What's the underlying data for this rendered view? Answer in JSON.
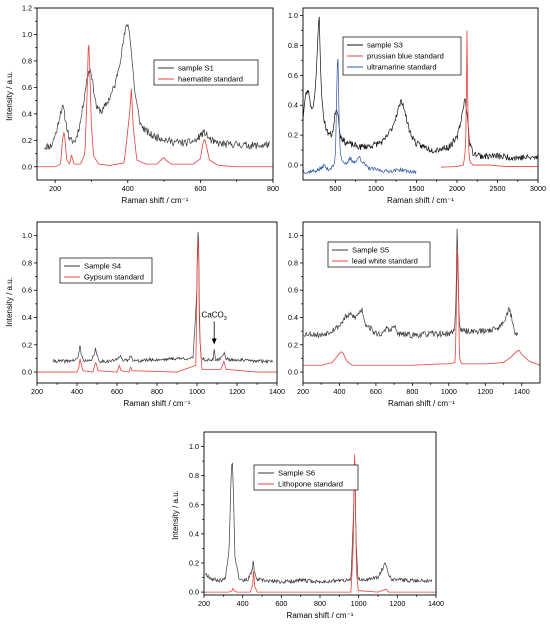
{
  "chart_data": [
    {
      "type": "line",
      "xlabel": "Raman shift / cm⁻¹",
      "ylabel": "Intensity / a.u.",
      "xlim": [
        150,
        800
      ],
      "ylim": [
        -0.1,
        1.2
      ],
      "xticks": [
        200,
        400,
        600,
        800
      ],
      "yticks": [
        0.0,
        0.2,
        0.4,
        0.6,
        0.8,
        1.0,
        1.2
      ],
      "legend_position": "top-right",
      "series": [
        {
          "name": "sample S1",
          "color": "#3a3a3a",
          "noise": 0.028,
          "seed": 11,
          "x": [
            170,
            190,
            205,
            215,
            222,
            230,
            240,
            255,
            270,
            285,
            292,
            298,
            305,
            315,
            330,
            350,
            365,
            380,
            390,
            398,
            405,
            412,
            420,
            435,
            450,
            470,
            490,
            520,
            560,
            590,
            600,
            612,
            625,
            640,
            670,
            700,
            740,
            770,
            790
          ],
          "y": [
            0.15,
            0.16,
            0.28,
            0.42,
            0.45,
            0.33,
            0.2,
            0.19,
            0.34,
            0.62,
            0.72,
            0.74,
            0.6,
            0.44,
            0.42,
            0.52,
            0.62,
            0.82,
            0.98,
            1.09,
            1.02,
            0.8,
            0.55,
            0.32,
            0.27,
            0.23,
            0.22,
            0.19,
            0.18,
            0.2,
            0.24,
            0.26,
            0.21,
            0.18,
            0.17,
            0.17,
            0.16,
            0.16,
            0.17
          ]
        },
        {
          "name": "haematite standard",
          "color": "#e8403a",
          "noise": 0,
          "seed": 1,
          "x": [
            150,
            200,
            215,
            220,
            225,
            232,
            240,
            245,
            252,
            270,
            282,
            288,
            292,
            295,
            300,
            306,
            320,
            350,
            390,
            405,
            410,
            415,
            425,
            450,
            480,
            495,
            500,
            505,
            520,
            580,
            600,
            607,
            612,
            618,
            625,
            650,
            700,
            800
          ],
          "y": [
            0.0,
            0.0,
            0.02,
            0.2,
            0.27,
            0.05,
            0.02,
            0.09,
            0.02,
            0.02,
            0.1,
            0.55,
            0.99,
            0.75,
            0.3,
            0.08,
            0.02,
            0.01,
            0.03,
            0.4,
            0.59,
            0.3,
            0.05,
            0.02,
            0.02,
            0.06,
            0.07,
            0.05,
            0.02,
            0.02,
            0.06,
            0.18,
            0.21,
            0.14,
            0.05,
            0.01,
            0.0,
            0.0
          ]
        }
      ]
    },
    {
      "type": "line",
      "xlabel": "Raman shift / cm⁻¹",
      "ylabel": "",
      "xlim": [
        100,
        3000
      ],
      "ylim": [
        -0.1,
        1.05
      ],
      "xticks": [
        500,
        1000,
        1500,
        2000,
        2500,
        3000
      ],
      "yticks": [
        0.0,
        0.2,
        0.4,
        0.6,
        0.8,
        1.0
      ],
      "legend_position": "top-center",
      "series": [
        {
          "name": "sample S3",
          "color": "#111111",
          "noise": 0.022,
          "seed": 23,
          "x": [
            100,
            130,
            160,
            180,
            200,
            230,
            260,
            280,
            290,
            300,
            315,
            330,
            360,
            400,
            450,
            480,
            500,
            520,
            540,
            560,
            600,
            680,
            800,
            950,
            1100,
            1200,
            1250,
            1290,
            1320,
            1340,
            1370,
            1420,
            1500,
            1700,
            1900,
            2000,
            2050,
            2080,
            2100,
            2120,
            2140,
            2160,
            2200,
            2300,
            2500,
            2700,
            2900,
            3000
          ],
          "y": [
            0.32,
            0.46,
            0.5,
            0.46,
            0.38,
            0.4,
            0.58,
            0.78,
            0.95,
            0.99,
            0.7,
            0.45,
            0.3,
            0.22,
            0.2,
            0.26,
            0.36,
            0.38,
            0.3,
            0.2,
            0.16,
            0.14,
            0.12,
            0.13,
            0.16,
            0.25,
            0.33,
            0.4,
            0.43,
            0.4,
            0.32,
            0.22,
            0.14,
            0.1,
            0.12,
            0.18,
            0.3,
            0.4,
            0.44,
            0.38,
            0.24,
            0.14,
            0.08,
            0.06,
            0.06,
            0.05,
            0.05,
            0.05
          ]
        },
        {
          "name": "prussian blue standard",
          "color": "#e8403a",
          "noise": 0,
          "seed": 2,
          "x": [
            100,
            500,
            1000,
            1500,
            2000,
            2080,
            2100,
            2110,
            2118,
            2122,
            2126,
            2132,
            2145,
            2160,
            2200,
            2400,
            2600,
            3000
          ],
          "y": [
            -0.02,
            -0.02,
            -0.02,
            -0.02,
            -0.01,
            0.0,
            0.08,
            0.2,
            0.5,
            0.88,
            0.92,
            0.45,
            0.1,
            0.02,
            0.0,
            0.0,
            -0.01,
            -0.01
          ],
          "xmin_draw": 1800
        },
        {
          "name": "ultramarine standard",
          "color": "#2f55a4",
          "noise": 0.012,
          "seed": 37,
          "x": [
            100,
            150,
            200,
            250,
            300,
            330,
            360,
            400,
            450,
            480,
            500,
            520,
            530,
            545,
            560,
            580,
            600,
            640,
            680,
            700,
            750,
            800,
            820,
            900,
            1000,
            1100,
            1200,
            1300,
            1380,
            1500
          ],
          "y": [
            -0.04,
            -0.05,
            -0.04,
            -0.04,
            -0.03,
            -0.02,
            0.0,
            -0.03,
            -0.02,
            0.0,
            0.05,
            0.6,
            0.78,
            0.3,
            0.08,
            0.04,
            0.02,
            0.0,
            0.05,
            0.03,
            0.02,
            0.06,
            0.03,
            -0.02,
            -0.03,
            -0.04,
            -0.04,
            -0.03,
            -0.04,
            -0.05
          ],
          "xmax_draw": 1500
        }
      ]
    },
    {
      "type": "line",
      "xlabel": "Raman shift / cm⁻¹",
      "ylabel": "Intensity / a.u.",
      "xlim": [
        200,
        1400
      ],
      "ylim": [
        -0.08,
        1.1
      ],
      "xticks": [
        200,
        400,
        600,
        800,
        1000,
        1200,
        1400
      ],
      "yticks": [
        0.0,
        0.2,
        0.4,
        0.6,
        0.8,
        1.0
      ],
      "legend_position": "top-left",
      "annotation": {
        "text": "CaCO",
        "sub": "3",
        "x": 1086,
        "y": 0.18
      },
      "series": [
        {
          "name": "Sample S4",
          "color": "#3a3a3a",
          "noise": 0.012,
          "seed": 41,
          "x": [
            280,
            350,
            400,
            410,
            415,
            420,
            428,
            440,
            470,
            485,
            492,
            500,
            510,
            560,
            600,
            618,
            630,
            660,
            670,
            680,
            700,
            760,
            800,
            900,
            980,
            998,
            1004,
            1008,
            1012,
            1020,
            1040,
            1080,
            1086,
            1092,
            1110,
            1130,
            1136,
            1145,
            1160,
            1200,
            1300,
            1380
          ],
          "y": [
            0.08,
            0.08,
            0.09,
            0.14,
            0.2,
            0.14,
            0.1,
            0.08,
            0.08,
            0.13,
            0.17,
            0.12,
            0.08,
            0.08,
            0.09,
            0.13,
            0.08,
            0.09,
            0.13,
            0.09,
            0.08,
            0.09,
            0.09,
            0.1,
            0.1,
            0.55,
            1.05,
            0.98,
            0.3,
            0.11,
            0.09,
            0.09,
            0.16,
            0.09,
            0.09,
            0.12,
            0.15,
            0.1,
            0.09,
            0.09,
            0.08,
            0.08
          ]
        },
        {
          "name": "Gypsum standard",
          "color": "#e8403a",
          "noise": 0,
          "seed": 3,
          "x": [
            200,
            400,
            410,
            415,
            422,
            430,
            480,
            490,
            495,
            505,
            600,
            612,
            620,
            660,
            668,
            675,
            900,
            995,
            1000,
            1005,
            1008,
            1014,
            1025,
            1120,
            1130,
            1135,
            1145,
            1300,
            1400
          ],
          "y": [
            0.0,
            0.0,
            0.04,
            0.1,
            0.05,
            0.01,
            0.0,
            0.06,
            0.07,
            0.01,
            0.0,
            0.05,
            0.01,
            0.0,
            0.04,
            0.01,
            0.0,
            0.05,
            0.7,
            1.0,
            0.95,
            0.25,
            0.02,
            0.02,
            0.06,
            0.08,
            0.02,
            0.0,
            0.0
          ]
        }
      ]
    },
    {
      "type": "line",
      "xlabel": "Raman shift / cm⁻¹",
      "ylabel": "",
      "xlim": [
        200,
        1500
      ],
      "ylim": [
        -0.08,
        1.1
      ],
      "xticks": [
        200,
        400,
        600,
        800,
        1000,
        1200,
        1400
      ],
      "yticks": [
        0.0,
        0.2,
        0.4,
        0.6,
        0.8,
        1.0
      ],
      "legend_position": "top-center",
      "series": [
        {
          "name": "Sample S5",
          "color": "#3a3a3a",
          "noise": 0.022,
          "seed": 53,
          "x": [
            205,
            250,
            300,
            350,
            400,
            430,
            460,
            490,
            510,
            525,
            540,
            600,
            640,
            660,
            680,
            700,
            720,
            800,
            900,
            1000,
            1030,
            1040,
            1045,
            1050,
            1056,
            1065,
            1100,
            1200,
            1280,
            1310,
            1330,
            1345,
            1360,
            1380
          ],
          "y": [
            0.28,
            0.28,
            0.27,
            0.3,
            0.34,
            0.4,
            0.42,
            0.4,
            0.44,
            0.46,
            0.36,
            0.28,
            0.28,
            0.33,
            0.3,
            0.34,
            0.28,
            0.27,
            0.28,
            0.28,
            0.3,
            0.55,
            1.05,
            0.8,
            0.4,
            0.3,
            0.3,
            0.3,
            0.33,
            0.4,
            0.46,
            0.4,
            0.3,
            0.26
          ]
        },
        {
          "name": "lead white standard",
          "color": "#e8403a",
          "noise": 0,
          "seed": 4,
          "x": [
            200,
            300,
            360,
            390,
            410,
            420,
            440,
            470,
            520,
            600,
            700,
            800,
            960,
            1000,
            1035,
            1042,
            1048,
            1052,
            1058,
            1070,
            1200,
            1300,
            1340,
            1370,
            1385,
            1400,
            1440,
            1480,
            1500
          ],
          "y": [
            0.05,
            0.05,
            0.07,
            0.12,
            0.15,
            0.14,
            0.08,
            0.05,
            0.05,
            0.05,
            0.05,
            0.05,
            0.06,
            0.06,
            0.07,
            0.5,
            1.0,
            0.7,
            0.1,
            0.06,
            0.06,
            0.07,
            0.11,
            0.15,
            0.16,
            0.13,
            0.08,
            0.06,
            0.05
          ]
        }
      ]
    },
    {
      "type": "line",
      "xlabel": "Raman shift / cm⁻¹",
      "ylabel": "Intensity / a.u.",
      "xlim": [
        200,
        1400
      ],
      "ylim": [
        -0.02,
        1.1
      ],
      "xticks": [
        200,
        400,
        600,
        800,
        1000,
        1200,
        1400
      ],
      "yticks": [
        0.0,
        0.2,
        0.4,
        0.6,
        0.8,
        1.0
      ],
      "legend_position": "top-right",
      "series": [
        {
          "name": "Sample S6",
          "color": "#3a3a3a",
          "noise": 0.013,
          "seed": 67,
          "x": [
            205,
            240,
            280,
            310,
            330,
            340,
            346,
            352,
            360,
            380,
            400,
            430,
            450,
            455,
            460,
            470,
            500,
            600,
            700,
            800,
            900,
            960,
            975,
            980,
            985,
            995,
            1010,
            1100,
            1130,
            1140,
            1150,
            1170,
            1250,
            1350,
            1380
          ],
          "y": [
            0.13,
            0.09,
            0.08,
            0.09,
            0.3,
            0.8,
            0.93,
            0.7,
            0.25,
            0.1,
            0.08,
            0.09,
            0.15,
            0.23,
            0.14,
            0.09,
            0.08,
            0.07,
            0.08,
            0.07,
            0.08,
            0.08,
            0.6,
            1.0,
            0.4,
            0.1,
            0.08,
            0.1,
            0.18,
            0.2,
            0.14,
            0.09,
            0.08,
            0.08,
            0.08
          ]
        },
        {
          "name": "Lithopone standard",
          "color": "#e8403a",
          "noise": 0,
          "seed": 5,
          "x": [
            200,
            330,
            345,
            350,
            356,
            370,
            440,
            452,
            456,
            462,
            475,
            600,
            960,
            972,
            978,
            982,
            988,
            998,
            1100,
            1140,
            1155,
            1400
          ],
          "y": [
            0.0,
            0.0,
            0.01,
            0.03,
            0.01,
            0.0,
            0.0,
            0.05,
            0.16,
            0.04,
            0.0,
            0.0,
            0.0,
            0.3,
            1.0,
            0.8,
            0.15,
            0.01,
            0.0,
            0.02,
            0.0,
            0.0
          ]
        }
      ]
    }
  ]
}
